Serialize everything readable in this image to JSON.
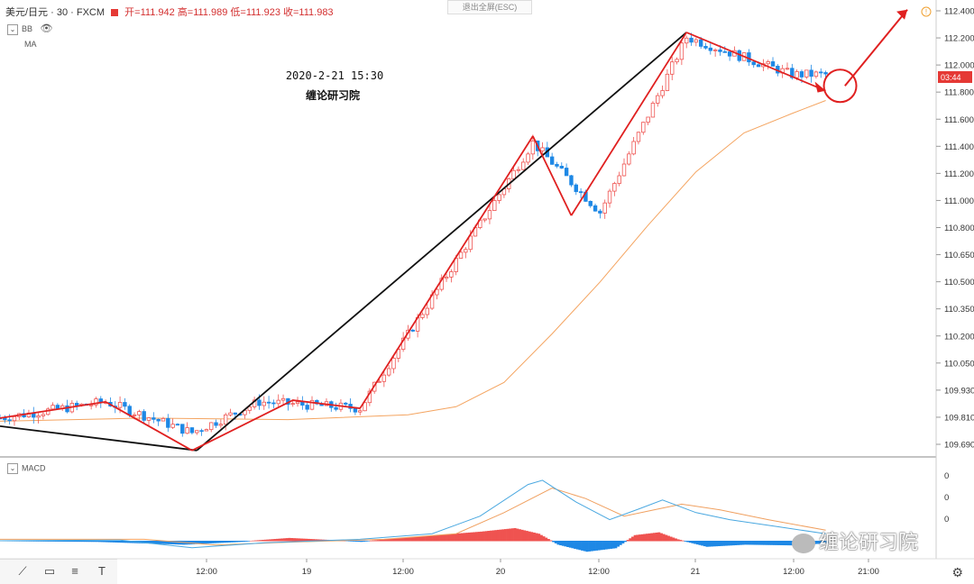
{
  "header": {
    "symbol": "美元/日元",
    "interval": "30",
    "source": "FXCM",
    "ohlc": "开=111.942  高=111.989  低=111.923  收=111.983",
    "exit_fullscreen": "退出全屏(ESC)"
  },
  "indicators": {
    "bb": "BB",
    "ma": "MA",
    "macd": "MACD"
  },
  "annotations": {
    "datetime": "2020-2-21 15:30",
    "author": "缠论研习院"
  },
  "watermark": "缠论研习院",
  "price_tag": "03:44",
  "colors": {
    "up": "#ef5350",
    "down": "#1e88e5",
    "ma": "#f4a460",
    "red_line": "#e02020",
    "black_line": "#111111",
    "macd_line": "#4aa8e0",
    "signal_line": "#f0a060"
  },
  "chart_data": {
    "type": "line",
    "title": "",
    "ylabel": "",
    "ylim": [
      109.62,
      112.44
    ],
    "y_ticks": [
      "112.400",
      "112.200",
      "112.000",
      "111.800",
      "111.600",
      "111.400",
      "111.200",
      "111.000",
      "110.800",
      "110.650",
      "110.500",
      "110.350",
      "110.200",
      "110.050",
      "109.930",
      "109.810",
      "109.690"
    ],
    "x_ticks": [
      "12:00",
      "19",
      "12:00",
      "20",
      "12:00",
      "21",
      "12:00",
      "21:00"
    ],
    "macd_ticks": [
      "0",
      "0",
      "0"
    ],
    "price_path": [
      {
        "t": 0,
        "v": 109.86
      },
      {
        "t": 22,
        "v": 109.96
      },
      {
        "t": 40,
        "v": 109.77
      },
      {
        "t": 54,
        "v": 109.96
      },
      {
        "t": 75,
        "v": 109.92
      },
      {
        "t": 111,
        "v": 111.56
      },
      {
        "t": 125,
        "v": 111.13
      },
      {
        "t": 143,
        "v": 112.21
      },
      {
        "t": 165,
        "v": 111.98
      }
    ],
    "red_segments": [
      {
        "from": {
          "t": 0,
          "v": 109.86
        },
        "to": {
          "t": 22,
          "v": 109.96
        }
      },
      {
        "from": {
          "t": 22,
          "v": 109.96
        },
        "to": {
          "t": 40,
          "v": 109.66
        }
      },
      {
        "from": {
          "t": 40,
          "v": 109.66
        },
        "to": {
          "t": 61,
          "v": 109.97
        }
      },
      {
        "from": {
          "t": 61,
          "v": 109.97
        },
        "to": {
          "t": 75,
          "v": 109.92
        }
      },
      {
        "from": {
          "t": 75,
          "v": 109.92
        },
        "to": {
          "t": 111,
          "v": 111.6
        }
      },
      {
        "from": {
          "t": 111,
          "v": 111.6
        },
        "to": {
          "t": 119,
          "v": 111.11
        }
      },
      {
        "from": {
          "t": 119,
          "v": 111.11
        },
        "to": {
          "t": 143,
          "v": 112.24
        }
      },
      {
        "from": {
          "t": 143,
          "v": 112.24
        },
        "to": {
          "t": 172,
          "v": 111.88
        }
      }
    ],
    "black_segments": [
      {
        "from": {
          "t": 0,
          "v": 109.81
        },
        "to": {
          "t": 41,
          "v": 109.66
        }
      },
      {
        "from": {
          "t": 41,
          "v": 109.66
        },
        "to": {
          "t": 143,
          "v": 112.24
        }
      }
    ],
    "projection_arrow": {
      "from": {
        "t": 176,
        "v": 111.91
      },
      "to": {
        "t": 189,
        "v": 112.38
      }
    },
    "ma_curve": [
      {
        "t": 0,
        "v": 109.84
      },
      {
        "t": 30,
        "v": 109.86
      },
      {
        "t": 60,
        "v": 109.85
      },
      {
        "t": 85,
        "v": 109.88
      },
      {
        "t": 95,
        "v": 109.93
      },
      {
        "t": 105,
        "v": 110.08
      },
      {
        "t": 115,
        "v": 110.38
      },
      {
        "t": 125,
        "v": 110.7
      },
      {
        "t": 135,
        "v": 111.05
      },
      {
        "t": 145,
        "v": 111.38
      },
      {
        "t": 155,
        "v": 111.62
      },
      {
        "t": 165,
        "v": 111.74
      },
      {
        "t": 172,
        "v": 111.82
      }
    ],
    "macd": {
      "histogram": [
        {
          "t": 0,
          "v": 0.0
        },
        {
          "t": 20,
          "v": -0.01
        },
        {
          "t": 38,
          "v": -0.05
        },
        {
          "t": 50,
          "v": -0.01
        },
        {
          "t": 60,
          "v": 0.04
        },
        {
          "t": 75,
          "v": -0.01
        },
        {
          "t": 85,
          "v": 0.05
        },
        {
          "t": 100,
          "v": 0.13
        },
        {
          "t": 107,
          "v": 0.18
        },
        {
          "t": 112,
          "v": 0.1
        },
        {
          "t": 116,
          "v": -0.05
        },
        {
          "t": 122,
          "v": -0.15
        },
        {
          "t": 128,
          "v": -0.1
        },
        {
          "t": 132,
          "v": 0.08
        },
        {
          "t": 137,
          "v": 0.12
        },
        {
          "t": 141,
          "v": 0.02
        },
        {
          "t": 147,
          "v": -0.08
        },
        {
          "t": 155,
          "v": -0.05
        },
        {
          "t": 165,
          "v": -0.06
        },
        {
          "t": 172,
          "v": -0.03
        }
      ],
      "macd_line": [
        {
          "t": 0,
          "v": 0.0
        },
        {
          "t": 25,
          "v": 0.01
        },
        {
          "t": 40,
          "v": -0.1
        },
        {
          "t": 55,
          "v": -0.03
        },
        {
          "t": 75,
          "v": 0.02
        },
        {
          "t": 90,
          "v": 0.1
        },
        {
          "t": 100,
          "v": 0.35
        },
        {
          "t": 110,
          "v": 0.8
        },
        {
          "t": 113,
          "v": 0.86
        },
        {
          "t": 120,
          "v": 0.55
        },
        {
          "t": 127,
          "v": 0.3
        },
        {
          "t": 133,
          "v": 0.45
        },
        {
          "t": 138,
          "v": 0.58
        },
        {
          "t": 145,
          "v": 0.4
        },
        {
          "t": 152,
          "v": 0.3
        },
        {
          "t": 162,
          "v": 0.2
        },
        {
          "t": 172,
          "v": 0.1
        }
      ],
      "signal_line": [
        {
          "t": 0,
          "v": 0.02
        },
        {
          "t": 30,
          "v": 0.02
        },
        {
          "t": 45,
          "v": -0.06
        },
        {
          "t": 60,
          "v": -0.02
        },
        {
          "t": 80,
          "v": 0.02
        },
        {
          "t": 95,
          "v": 0.1
        },
        {
          "t": 105,
          "v": 0.4
        },
        {
          "t": 115,
          "v": 0.75
        },
        {
          "t": 122,
          "v": 0.6
        },
        {
          "t": 130,
          "v": 0.35
        },
        {
          "t": 137,
          "v": 0.45
        },
        {
          "t": 142,
          "v": 0.52
        },
        {
          "t": 150,
          "v": 0.44
        },
        {
          "t": 160,
          "v": 0.3
        },
        {
          "t": 172,
          "v": 0.15
        }
      ]
    }
  }
}
